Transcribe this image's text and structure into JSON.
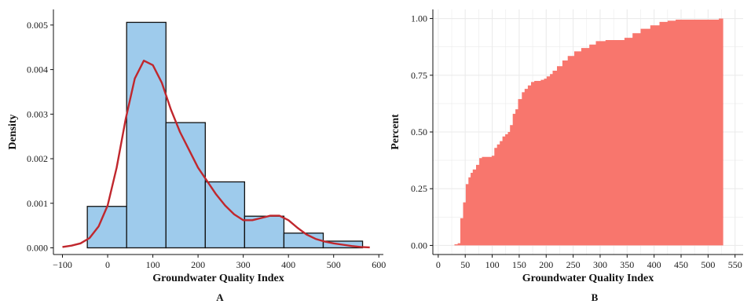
{
  "chart_data": [
    {
      "type": "histogram",
      "panel_label": "A",
      "xlabel": "Groundwater Quality Index",
      "ylabel": "Density",
      "xlim": [
        -120,
        610
      ],
      "ylim": [
        -0.00015,
        0.00535
      ],
      "x_ticks": [
        -100,
        0,
        100,
        200,
        300,
        400,
        500,
        600
      ],
      "x_tick_labels": [
        "−100",
        "0",
        "100",
        "200",
        "300",
        "400",
        "500",
        "600"
      ],
      "y_ticks": [
        0.0,
        0.001,
        0.002,
        0.003,
        0.004,
        0.005
      ],
      "y_tick_labels": [
        "0.000",
        "0.001",
        "0.002",
        "0.003",
        "0.004",
        "0.005"
      ],
      "bars": [
        {
          "x0": -45,
          "x1": 42,
          "value": 0.00093
        },
        {
          "x0": 42,
          "x1": 129,
          "value": 0.00506
        },
        {
          "x0": 129,
          "x1": 216,
          "value": 0.00281
        },
        {
          "x0": 216,
          "x1": 303,
          "value": 0.00148
        },
        {
          "x0": 303,
          "x1": 390,
          "value": 0.00071
        },
        {
          "x0": 390,
          "x1": 477,
          "value": 0.00033
        },
        {
          "x0": 477,
          "x1": 564,
          "value": 0.00015
        }
      ],
      "density_curve": {
        "x": [
          -100,
          -80,
          -60,
          -40,
          -20,
          0,
          20,
          40,
          60,
          80,
          100,
          120,
          140,
          160,
          180,
          200,
          220,
          240,
          260,
          280,
          300,
          320,
          340,
          360,
          380,
          400,
          420,
          440,
          460,
          480,
          500,
          520,
          540,
          560,
          580
        ],
        "y": [
          2e-05,
          5e-05,
          0.0001,
          0.00022,
          0.00048,
          0.00095,
          0.0018,
          0.0029,
          0.0038,
          0.0042,
          0.0041,
          0.0037,
          0.0031,
          0.0026,
          0.0022,
          0.0018,
          0.0015,
          0.0012,
          0.00095,
          0.00075,
          0.00062,
          0.00062,
          0.00067,
          0.00072,
          0.00072,
          0.00062,
          0.00045,
          0.0003,
          0.0002,
          0.00014,
          0.0001,
          7e-05,
          4e-05,
          2e-05,
          1e-05
        ]
      },
      "colors": {
        "bar_fill": "#9ecbec",
        "bar_stroke": "#111111",
        "curve": "#c0272d"
      },
      "grid": false
    },
    {
      "type": "area",
      "subtype": "empirical cumulative distribution",
      "panel_label": "B",
      "xlabel": "Groundwater Quality Index",
      "ylabel": "Percent",
      "xlim": [
        -10,
        565
      ],
      "ylim": [
        -0.04,
        1.04
      ],
      "x_ticks": [
        0,
        50,
        100,
        150,
        200,
        250,
        300,
        350,
        400,
        450,
        500,
        550
      ],
      "y_ticks": [
        0.0,
        0.25,
        0.5,
        0.75,
        1.0
      ],
      "y_tick_labels": [
        "0.00",
        "0.25",
        "0.50",
        "0.75",
        "1.00"
      ],
      "x": [
        30,
        36,
        41,
        46,
        51,
        56,
        60,
        64,
        70,
        76,
        81,
        86,
        92,
        99,
        104,
        109,
        114,
        119,
        124,
        129,
        133,
        138,
        143,
        148,
        155,
        160,
        166,
        172,
        178,
        184,
        190,
        196,
        201,
        207,
        212,
        220,
        230,
        240,
        252,
        265,
        280,
        292,
        310,
        325,
        345,
        360,
        375,
        393,
        410,
        425,
        440,
        460,
        490,
        510,
        520,
        528
      ],
      "y": [
        0.005,
        0.01,
        0.12,
        0.19,
        0.27,
        0.3,
        0.32,
        0.335,
        0.355,
        0.385,
        0.39,
        0.39,
        0.39,
        0.395,
        0.43,
        0.445,
        0.46,
        0.48,
        0.49,
        0.5,
        0.53,
        0.58,
        0.6,
        0.645,
        0.675,
        0.69,
        0.705,
        0.72,
        0.725,
        0.725,
        0.73,
        0.735,
        0.745,
        0.755,
        0.77,
        0.79,
        0.815,
        0.835,
        0.855,
        0.87,
        0.885,
        0.9,
        0.905,
        0.905,
        0.915,
        0.935,
        0.955,
        0.97,
        0.985,
        0.99,
        0.995,
        0.995,
        0.995,
        0.995,
        1.0,
        1.0
      ],
      "colors": {
        "fill": "#f8766d",
        "panel_bg": "#ffffff",
        "grid": "#ebebeb"
      },
      "grid": true
    }
  ]
}
